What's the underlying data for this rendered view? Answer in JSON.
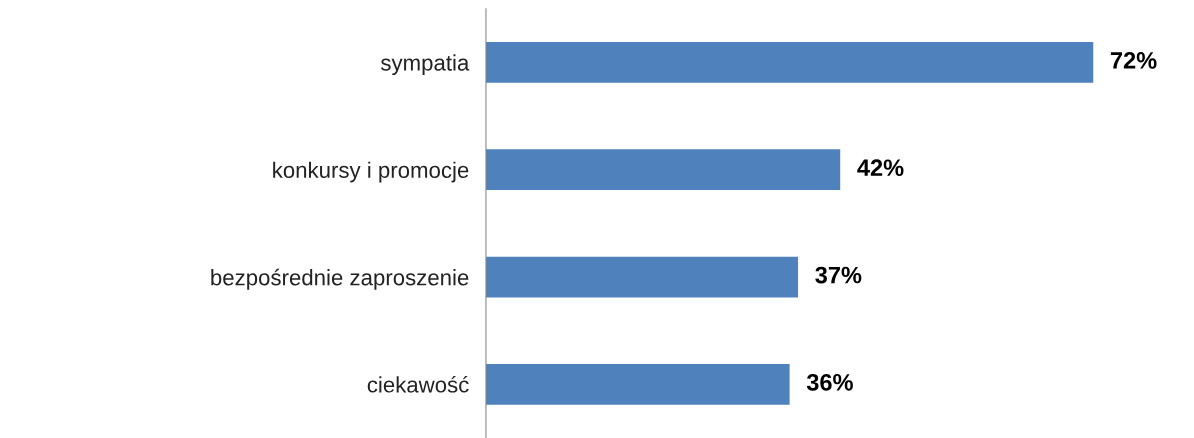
{
  "chart_data": {
    "type": "bar",
    "orientation": "horizontal",
    "categories": [
      "sympatia",
      "konkursy i promocje",
      "bezpośrednie zaproszenie",
      "ciekawość"
    ],
    "values": [
      72,
      42,
      37,
      36
    ],
    "value_labels": [
      "72%",
      "42%",
      "37%",
      "36%"
    ],
    "color": "#4f81bd",
    "grid": false,
    "legend": false
  }
}
